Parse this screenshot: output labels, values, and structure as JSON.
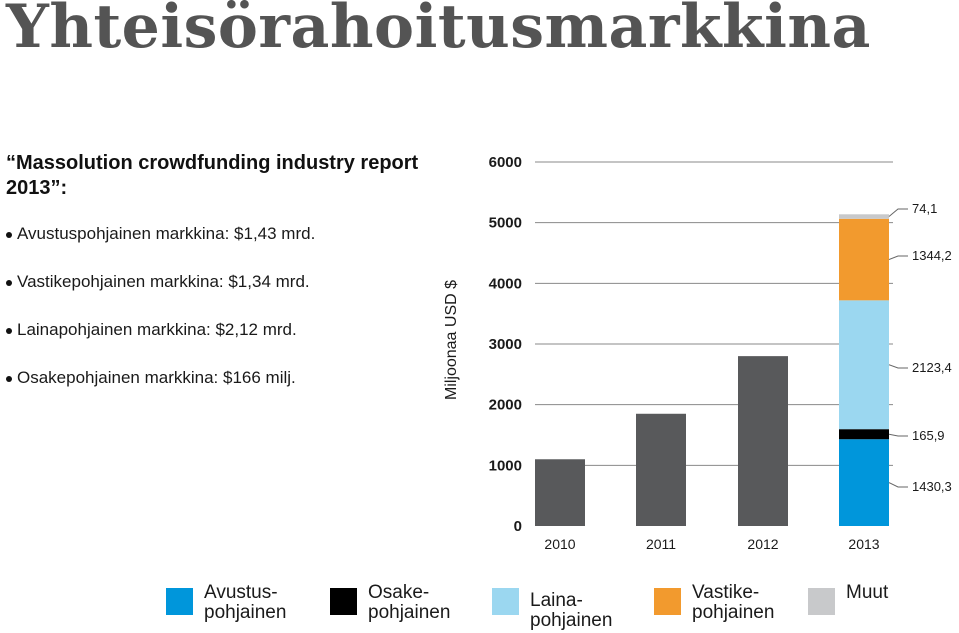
{
  "page_title": "Yhteisörahoitusmarkkina",
  "report_title": "“Massolution crowdfunding industry report 2013”:",
  "bullets": [
    "Avustuspohjainen markkina: $1,43 mrd.",
    "Vastikepohjainen markkina: $1,34 mrd.",
    "Lainapohjainen markkina: $2,12 mrd.",
    "Osakepohjainen markkina: $166 milj."
  ],
  "colors": {
    "bar_gray": "#58595b",
    "avustus": "#0096db",
    "osake": "#000000",
    "laina": "#9bd7f0",
    "vastike": "#f29a2e",
    "muut": "#c8c9cb",
    "grid": "#8a8a8a"
  },
  "chart_data": {
    "type": "bar",
    "ylabel": "Miljoonaa USD $",
    "ylim": [
      0,
      6000
    ],
    "yticks": [
      0,
      1000,
      2000,
      3000,
      4000,
      5000,
      6000
    ],
    "ytick_labels": [
      "0",
      "1000",
      "2000",
      "3000",
      "4000",
      "5000",
      "6000"
    ],
    "grid": true,
    "categories": [
      "2010",
      "2011",
      "2012",
      "2013"
    ],
    "totals": [
      1100,
      1850,
      2800,
      null
    ],
    "stacked_2013": [
      {
        "key": "avustus",
        "value": 1430.3,
        "label": "1430,3"
      },
      {
        "key": "osake",
        "value": 165.9,
        "label": "165,9"
      },
      {
        "key": "laina",
        "value": 2123.4,
        "label": "2123,4"
      },
      {
        "key": "vastike",
        "value": 1344.2,
        "label": "1344,2"
      },
      {
        "key": "muut",
        "value": 74.1,
        "label": "74,1"
      }
    ],
    "legend_position": "bottom"
  },
  "legend": [
    {
      "key": "avustus",
      "label": "Avustus-\npohjainen"
    },
    {
      "key": "osake",
      "label": "Osake-\npohjainen"
    },
    {
      "key": "laina",
      "label": "Laina-\npohjainen"
    },
    {
      "key": "vastike",
      "label": "Vastike-\npohjainen"
    },
    {
      "key": "muut",
      "label": "Muut"
    }
  ]
}
